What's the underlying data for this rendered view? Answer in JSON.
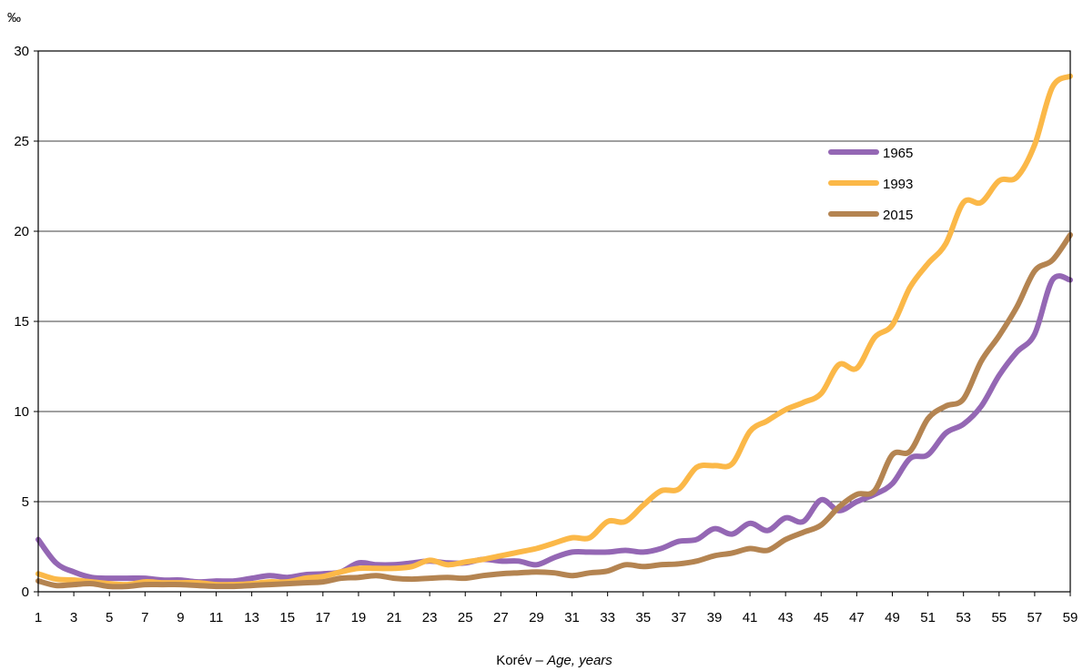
{
  "chart_data": {
    "type": "line",
    "unit_label": "‰",
    "xlabel_hu": "Korév – ",
    "xlabel_en": "Age, years",
    "ylim": [
      0,
      30
    ],
    "yticks": [
      0,
      5,
      10,
      15,
      20,
      25,
      30
    ],
    "xlim": [
      1,
      59
    ],
    "xticks": [
      1,
      3,
      5,
      7,
      9,
      11,
      13,
      15,
      17,
      19,
      21,
      23,
      25,
      27,
      29,
      31,
      33,
      35,
      37,
      39,
      41,
      43,
      45,
      47,
      49,
      51,
      53,
      55,
      57,
      59
    ],
    "grid": "horizontal",
    "legend_position": "upper-right",
    "x": [
      1,
      2,
      3,
      4,
      5,
      6,
      7,
      8,
      9,
      10,
      11,
      12,
      13,
      14,
      15,
      16,
      17,
      18,
      19,
      20,
      21,
      22,
      23,
      24,
      25,
      26,
      27,
      28,
      29,
      30,
      31,
      32,
      33,
      34,
      35,
      36,
      37,
      38,
      39,
      40,
      41,
      42,
      43,
      44,
      45,
      46,
      47,
      48,
      49,
      50,
      51,
      52,
      53,
      54,
      55,
      56,
      57,
      58,
      59
    ],
    "series": [
      {
        "name": "1965",
        "color": "#9467b4",
        "values": [
          2.9,
          1.6,
          1.1,
          0.8,
          0.75,
          0.75,
          0.75,
          0.65,
          0.65,
          0.55,
          0.6,
          0.6,
          0.75,
          0.9,
          0.8,
          0.95,
          1.0,
          1.1,
          1.6,
          1.5,
          1.5,
          1.6,
          1.7,
          1.6,
          1.6,
          1.8,
          1.7,
          1.7,
          1.5,
          1.9,
          2.2,
          2.2,
          2.2,
          2.3,
          2.2,
          2.4,
          2.8,
          2.9,
          3.5,
          3.2,
          3.8,
          3.4,
          4.1,
          3.9,
          5.1,
          4.5,
          5.0,
          5.4,
          6.0,
          7.4,
          7.6,
          8.8,
          9.3,
          10.3,
          12.0,
          13.3,
          14.3,
          17.3,
          17.3
        ]
      },
      {
        "name": "1993",
        "color": "#fbb848",
        "values": [
          1.0,
          0.7,
          0.65,
          0.55,
          0.45,
          0.4,
          0.55,
          0.5,
          0.5,
          0.5,
          0.4,
          0.4,
          0.45,
          0.55,
          0.55,
          0.75,
          0.85,
          1.1,
          1.3,
          1.3,
          1.3,
          1.4,
          1.75,
          1.5,
          1.65,
          1.8,
          2.0,
          2.2,
          2.4,
          2.7,
          3.0,
          3.0,
          3.9,
          3.9,
          4.8,
          5.6,
          5.7,
          6.9,
          7.0,
          7.1,
          8.9,
          9.5,
          10.1,
          10.5,
          11.0,
          12.6,
          12.4,
          14.1,
          14.8,
          16.9,
          18.2,
          19.3,
          21.6,
          21.6,
          22.8,
          23.0,
          24.8,
          28.0,
          28.6
        ]
      },
      {
        "name": "2015",
        "color": "#b48451",
        "values": [
          0.6,
          0.35,
          0.4,
          0.45,
          0.3,
          0.3,
          0.4,
          0.4,
          0.4,
          0.35,
          0.3,
          0.3,
          0.35,
          0.4,
          0.45,
          0.5,
          0.55,
          0.75,
          0.8,
          0.9,
          0.75,
          0.7,
          0.75,
          0.8,
          0.75,
          0.9,
          1.0,
          1.05,
          1.1,
          1.05,
          0.9,
          1.05,
          1.15,
          1.5,
          1.4,
          1.5,
          1.55,
          1.7,
          2.0,
          2.15,
          2.4,
          2.3,
          2.9,
          3.3,
          3.7,
          4.7,
          5.4,
          5.6,
          7.6,
          7.8,
          9.6,
          10.3,
          10.7,
          12.8,
          14.2,
          15.8,
          17.8,
          18.4,
          19.8
        ]
      }
    ]
  }
}
